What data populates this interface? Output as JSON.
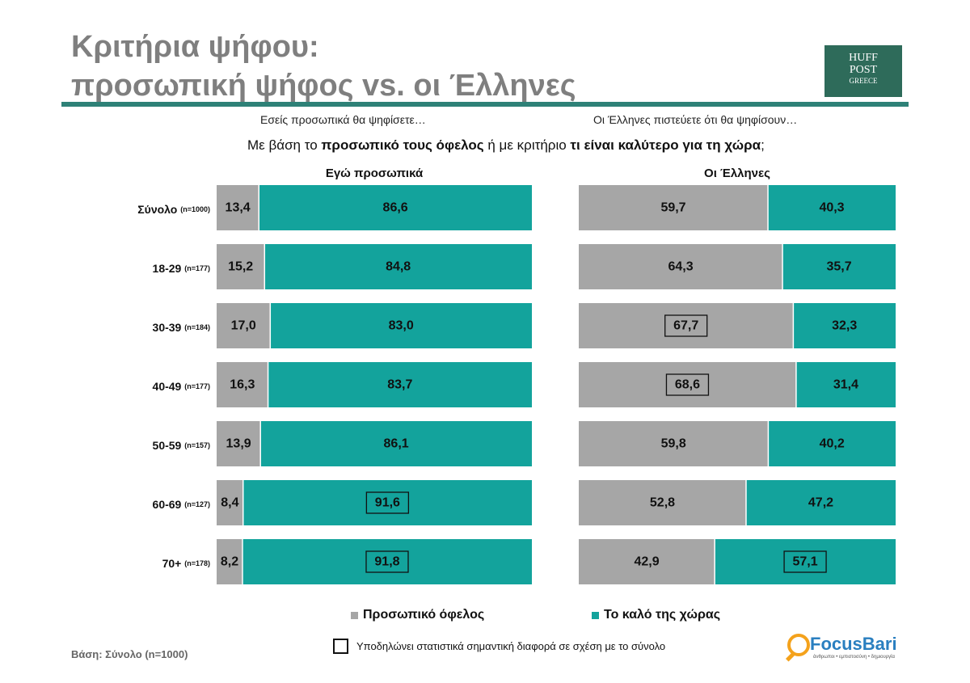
{
  "title_lines": [
    "Κριτήρια ψήφου:",
    "προσωπική ψήφος vs. οι Έλληνες"
  ],
  "logo": {
    "line1": "HUFF",
    "line2": "POST",
    "line3": "GREECE"
  },
  "left_subtitle": "Εσείς προσωπικά θα ψηφίσετε…",
  "right_subtitle": "Οι Έλληνες πιστεύετε ότι θα ψηφίσουν…",
  "question": {
    "p1": "Με βάση το ",
    "b1": "προσωπικό τους όφελος",
    "p2": " ή με κριτήριο ",
    "b2": "τι είναι καλύτερο για τη χώρα",
    "p3": ";"
  },
  "colors": {
    "personal": "#a6a6a6",
    "country": "#13a39c"
  },
  "chart_data": {
    "type": "bar",
    "orientation": "horizontal",
    "stacked": true,
    "xlim": [
      0,
      100
    ],
    "categories": [
      "Σύνολο",
      "18-29",
      "30-39",
      "40-49",
      "50-59",
      "60-69",
      "70+"
    ],
    "category_n": [
      "(n=1000)",
      "(n=177)",
      "(n=184)",
      "(n=177)",
      "(n=157)",
      "(n=127)",
      "(n=178)"
    ],
    "series_names": [
      "Προσωπικό όφελος",
      "Το καλό της χώρας"
    ],
    "panels": [
      {
        "title": "Εγώ προσωπικά",
        "personal": [
          13.4,
          15.2,
          17.0,
          16.3,
          13.9,
          8.4,
          8.2
        ],
        "country": [
          86.6,
          84.8,
          83.0,
          83.7,
          86.1,
          91.6,
          91.8
        ],
        "personal_labels": [
          "13,4",
          "15,2",
          "17,0",
          "16,3",
          "13,9",
          "8,4",
          "8,2"
        ],
        "country_labels": [
          "86,6",
          "84,8",
          "83,0",
          "83,7",
          "86,1",
          "91,6",
          "91,8"
        ],
        "personal_significant": [
          false,
          false,
          false,
          false,
          false,
          false,
          false
        ],
        "country_significant": [
          false,
          false,
          false,
          false,
          false,
          true,
          true
        ]
      },
      {
        "title": "Οι Έλληνες",
        "personal": [
          59.7,
          64.3,
          67.7,
          68.6,
          59.8,
          52.8,
          42.9
        ],
        "country": [
          40.3,
          35.7,
          32.3,
          31.4,
          40.2,
          47.2,
          57.1
        ],
        "personal_labels": [
          "59,7",
          "64,3",
          "67,7",
          "68,6",
          "59,8",
          "52,8",
          "42,9"
        ],
        "country_labels": [
          "40,3",
          "35,7",
          "32,3",
          "31,4",
          "40,2",
          "47,2",
          "57,1"
        ],
        "personal_significant": [
          false,
          false,
          true,
          true,
          false,
          false,
          false
        ],
        "country_significant": [
          false,
          false,
          false,
          false,
          false,
          false,
          true
        ]
      }
    ],
    "legend_position": "bottom"
  },
  "note": "Υποδηλώνει στατιστικά σημαντική διαφορά σε σχέση με το σύνολο",
  "base": "Βάση: Σύνολο (n=1000)",
  "focusbari": {
    "name": "FocusBari",
    "tagline": "άνθρωποι • εμπιστοσύνη • δημιουργία"
  }
}
